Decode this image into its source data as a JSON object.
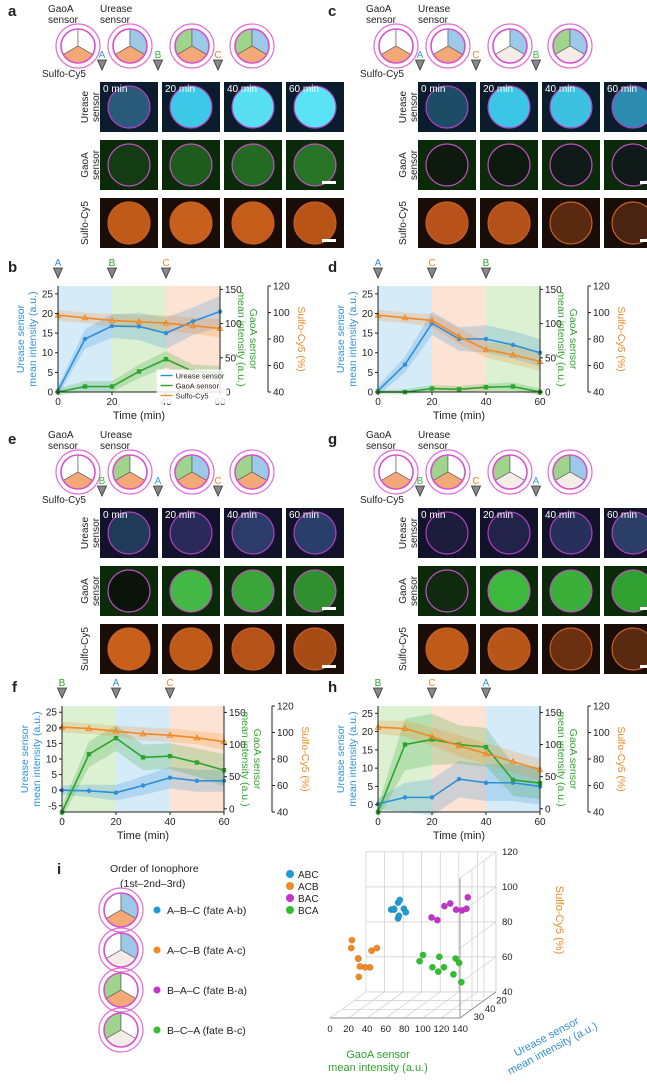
{
  "panels": {
    "a": {
      "letter": "a",
      "sensor_labels": [
        "GaoA\nsensor",
        "Urease\nsensor"
      ],
      "dye_label": "Sulfo-Cy5",
      "markers": [
        {
          "label": "A",
          "color": "#3a9fd8"
        },
        {
          "label": "B",
          "color": "#3db33a"
        },
        {
          "label": "C",
          "color": "#f0892a"
        }
      ],
      "times": [
        "0 min",
        "20 min",
        "40 min",
        "60 min"
      ],
      "rows": [
        "Urease\nsensor",
        "GaoA\nsensor",
        "Sulfo-Cy5"
      ]
    },
    "c": {
      "letter": "c",
      "sensor_labels": [
        "GaoA\nsensor",
        "Urease\nsensor"
      ],
      "dye_label": "Sulfo-Cy5",
      "markers": [
        {
          "label": "A",
          "color": "#3a9fd8"
        },
        {
          "label": "C",
          "color": "#f0892a"
        },
        {
          "label": "B",
          "color": "#3db33a"
        }
      ],
      "times": [
        "0 min",
        "20 min",
        "40 min",
        "60 min"
      ],
      "rows": [
        "Urease\nsensor",
        "GaoA\nsensor",
        "Sulfo-Cy5"
      ]
    },
    "e": {
      "letter": "e",
      "sensor_labels": [
        "GaoA\nsensor",
        "Urease\nsensor"
      ],
      "dye_label": "Sulfo-Cy5",
      "markers": [
        {
          "label": "B",
          "color": "#3db33a"
        },
        {
          "label": "A",
          "color": "#3a9fd8"
        },
        {
          "label": "C",
          "color": "#f0892a"
        }
      ],
      "times": [
        "0 min",
        "20 min",
        "40 min",
        "60 min"
      ],
      "rows": [
        "Urease\nsensor",
        "GaoA\nsensor",
        "Sulfo-Cy5"
      ]
    },
    "g": {
      "letter": "g",
      "sensor_labels": [
        "GaoA\nsensor",
        "Urease\nsensor"
      ],
      "dye_label": "Sulfo-Cy5",
      "markers": [
        {
          "label": "B",
          "color": "#3db33a"
        },
        {
          "label": "C",
          "color": "#f0892a"
        },
        {
          "label": "A",
          "color": "#3a9fd8"
        }
      ],
      "times": [
        "0 min",
        "20 min",
        "40 min",
        "60 min"
      ],
      "rows": [
        "Urease\nsensor",
        "GaoA\nsensor",
        "Sulfo-Cy5"
      ]
    },
    "i": {
      "letter": "i",
      "legend_title": "Order of Ionophore",
      "legend_subtitle": "(1st–2nd–3rd)",
      "items": [
        {
          "label": "A–B–C (fate A-b)",
          "color": "#1f9bd7"
        },
        {
          "label": "A–C–B (fate A-c)",
          "color": "#f08a24"
        },
        {
          "label": "B–A–C (fate B-a)",
          "color": "#c433c9"
        },
        {
          "label": "B–C–A (fate B-c)",
          "color": "#2fbf2f"
        }
      ]
    }
  },
  "colors": {
    "urease": "#2e8fd9",
    "gaoa": "#2ca52c",
    "cy5": "#f08a24",
    "bg_a": "#d6ebf8",
    "bg_b": "#dcf0d2",
    "bg_c": "#fde3d3"
  },
  "chart_data": [
    {
      "id": "b",
      "type": "line",
      "panel_letter": "b",
      "xlabel": "Time (min)",
      "xlim": [
        0,
        60
      ],
      "xticks": [
        0,
        20,
        40,
        60
      ],
      "y_left": {
        "label": "Urease sensor\nmean intensity (a.u.)",
        "lim": [
          0,
          27
        ],
        "ticks": [
          0,
          5,
          10,
          15,
          20,
          25
        ]
      },
      "y_mid": {
        "label": "GaoA sensor\nmean intensity (a.u.)",
        "lim": [
          0,
          155
        ],
        "ticks": [
          0,
          50,
          100,
          150
        ]
      },
      "y_right": {
        "label": "Sulfo-Cy5 (%)",
        "lim": [
          40,
          120
        ],
        "ticks": [
          40,
          60,
          80,
          100,
          120
        ]
      },
      "phases": [
        {
          "label": "A",
          "start": 0,
          "end": 20
        },
        {
          "label": "B",
          "start": 20,
          "end": 40
        },
        {
          "label": "C",
          "start": 40,
          "end": 60
        }
      ],
      "series": [
        {
          "name": "Urease sensor",
          "axis": "left",
          "marker": "circle",
          "x": [
            0,
            10,
            20,
            30,
            40,
            50,
            60
          ],
          "values": [
            0.3,
            13.5,
            16.8,
            16.7,
            15.0,
            18.0,
            20.5
          ],
          "band": [
            1.2,
            2.5,
            3.0,
            3.5,
            4.0,
            3.5,
            4.0
          ]
        },
        {
          "name": "GaoA sensor",
          "axis": "mid",
          "marker": "square",
          "x": [
            0,
            10,
            20,
            30,
            40,
            50,
            60
          ],
          "values": [
            0,
            8,
            8,
            30,
            48,
            30,
            28
          ],
          "band": [
            5,
            8,
            8,
            10,
            12,
            10,
            10
          ]
        },
        {
          "name": "Sulfo-Cy5",
          "axis": "right",
          "marker": "triangle",
          "x": [
            0,
            10,
            20,
            30,
            40,
            50,
            60
          ],
          "values": [
            98,
            96,
            94,
            93,
            92,
            90,
            88
          ],
          "band": [
            4,
            4,
            5,
            5,
            6,
            6,
            7
          ]
        }
      ],
      "legend": [
        "Urease sensor",
        "GaoA sensor",
        "Sulfo-Cy5"
      ]
    },
    {
      "id": "d",
      "type": "line",
      "panel_letter": "d",
      "xlabel": "Time (min)",
      "xlim": [
        0,
        60
      ],
      "xticks": [
        0,
        20,
        40,
        60
      ],
      "y_left": {
        "label": "Urease sensor\nmean intensity (a.u.)",
        "lim": [
          0,
          27
        ],
        "ticks": [
          0,
          5,
          10,
          15,
          20,
          25
        ]
      },
      "y_mid": {
        "label": "GaoA sensor\nmean intensity (a.u.)",
        "lim": [
          0,
          155
        ],
        "ticks": [
          0,
          50,
          100,
          150
        ]
      },
      "y_right": {
        "label": "Sulfo-Cy5 (%)",
        "lim": [
          40,
          120
        ],
        "ticks": [
          40,
          60,
          80,
          100,
          120
        ]
      },
      "phases": [
        {
          "label": "A",
          "start": 0,
          "end": 20
        },
        {
          "label": "C",
          "start": 20,
          "end": 40
        },
        {
          "label": "B",
          "start": 40,
          "end": 60
        }
      ],
      "series": [
        {
          "name": "Urease sensor",
          "axis": "left",
          "marker": "circle",
          "x": [
            0,
            10,
            20,
            30,
            40,
            50,
            60
          ],
          "values": [
            0.3,
            7,
            17.5,
            13.5,
            13.5,
            12,
            10
          ],
          "band": [
            1.2,
            2,
            3,
            3,
            3.5,
            3.5,
            3.5
          ]
        },
        {
          "name": "GaoA sensor",
          "axis": "mid",
          "marker": "square",
          "x": [
            0,
            10,
            20,
            30,
            40,
            50,
            60
          ],
          "values": [
            0,
            0,
            5,
            4,
            7,
            8,
            0
          ],
          "band": [
            3,
            4,
            5,
            5,
            5,
            6,
            5
          ]
        },
        {
          "name": "Sulfo-Cy5",
          "axis": "right",
          "marker": "triangle",
          "x": [
            0,
            10,
            20,
            30,
            40,
            50,
            60
          ],
          "values": [
            98,
            96,
            94,
            82,
            72,
            68,
            63
          ],
          "band": [
            4,
            4,
            5,
            6,
            6,
            7,
            7
          ]
        }
      ]
    },
    {
      "id": "f",
      "type": "line",
      "panel_letter": "f",
      "xlabel": "Time (min)",
      "xlim": [
        0,
        60
      ],
      "xticks": [
        0,
        20,
        40,
        60
      ],
      "y_left": {
        "label": "Urease sensor\nmean intensity (a.u.)",
        "lim": [
          -7,
          27
        ],
        "ticks": [
          -5,
          0,
          5,
          10,
          15,
          20,
          25
        ]
      },
      "y_mid": {
        "label": "GaoA sensor\nmean intensity (a.u.)",
        "lim": [
          -5,
          160
        ],
        "ticks": [
          0,
          50,
          100,
          150
        ]
      },
      "y_right": {
        "label": "Sulfo-Cy5 (%)",
        "lim": [
          40,
          120
        ],
        "ticks": [
          40,
          60,
          80,
          100,
          120
        ]
      },
      "phases": [
        {
          "label": "B",
          "start": 0,
          "end": 20
        },
        {
          "label": "A",
          "start": 20,
          "end": 40
        },
        {
          "label": "C",
          "start": 40,
          "end": 60
        }
      ],
      "series": [
        {
          "name": "Urease sensor",
          "axis": "left",
          "marker": "circle",
          "x": [
            0,
            10,
            20,
            30,
            40,
            50,
            60
          ],
          "values": [
            0,
            -0.2,
            -0.8,
            1.5,
            4,
            3,
            3
          ],
          "band": [
            1.5,
            2,
            2.5,
            3,
            3.5,
            3.5,
            3.5
          ]
        },
        {
          "name": "GaoA sensor",
          "axis": "mid",
          "marker": "square",
          "x": [
            0,
            10,
            20,
            30,
            40,
            50,
            60
          ],
          "values": [
            -5,
            85,
            110,
            80,
            82,
            72,
            60
          ],
          "band": [
            10,
            20,
            20,
            20,
            20,
            22,
            25
          ]
        },
        {
          "name": "Sulfo-Cy5",
          "axis": "right",
          "marker": "triangle",
          "x": [
            0,
            10,
            20,
            30,
            40,
            50,
            60
          ],
          "values": [
            104,
            103,
            101,
            99,
            98,
            96,
            93
          ],
          "band": [
            4,
            4,
            4,
            5,
            5,
            5,
            6
          ]
        }
      ]
    },
    {
      "id": "h",
      "type": "line",
      "panel_letter": "h",
      "xlabel": "Time (min)",
      "xlim": [
        0,
        60
      ],
      "xticks": [
        0,
        20,
        40,
        60
      ],
      "y_left": {
        "label": "Urease sensor\nmean intensity (a.u.)",
        "lim": [
          -2,
          27
        ],
        "ticks": [
          0,
          5,
          10,
          15,
          20,
          25
        ]
      },
      "y_mid": {
        "label": "GaoA sensor\nmean intensity (a.u.)",
        "lim": [
          -5,
          160
        ],
        "ticks": [
          0,
          50,
          100,
          150
        ]
      },
      "y_right": {
        "label": "Sulfo-Cy5 (%)",
        "lim": [
          40,
          120
        ],
        "ticks": [
          40,
          60,
          80,
          100,
          120
        ]
      },
      "phases": [
        {
          "label": "B",
          "start": 0,
          "end": 20
        },
        {
          "label": "C",
          "start": 20,
          "end": 40
        },
        {
          "label": "A",
          "start": 40,
          "end": 60
        }
      ],
      "series": [
        {
          "name": "Urease sensor",
          "axis": "left",
          "marker": "circle",
          "x": [
            0,
            10,
            20,
            30,
            40,
            50,
            60
          ],
          "values": [
            0.2,
            2,
            2,
            7,
            6,
            6,
            5
          ],
          "band": [
            1.5,
            4,
            5,
            5,
            5,
            5,
            5
          ]
        },
        {
          "name": "GaoA sensor",
          "axis": "mid",
          "marker": "square",
          "x": [
            0,
            10,
            20,
            30,
            40,
            50,
            60
          ],
          "values": [
            -5,
            100,
            108,
            100,
            96,
            45,
            40
          ],
          "band": [
            10,
            40,
            40,
            30,
            30,
            25,
            25
          ]
        },
        {
          "name": "Sulfo-Cy5",
          "axis": "right",
          "marker": "triangle",
          "x": [
            0,
            10,
            20,
            30,
            40,
            50,
            60
          ],
          "values": [
            104,
            103,
            97,
            90,
            84,
            78,
            72
          ],
          "band": [
            5,
            6,
            7,
            8,
            8,
            8,
            8
          ]
        }
      ]
    },
    {
      "id": "i",
      "type": "scatter",
      "panel_letter": "i",
      "xlabel": "GaoA sensor\nmean intensity (a.u.)",
      "ylabel": "Urease sensor\nmean intensity (a.u.)",
      "zlabel": "Sulfo-Cy5 (%)",
      "xticks": [
        0,
        20,
        40,
        60,
        80,
        100,
        120,
        140
      ],
      "yticks": [
        30,
        40,
        20
      ],
      "zticks": [
        40,
        60,
        80,
        100,
        120
      ],
      "legend": [
        "ABC",
        "ACB",
        "BAC",
        "BCA"
      ],
      "series": [
        {
          "name": "ABC",
          "x": [
            40,
            45,
            50,
            38,
            48,
            55,
            42,
            52,
            47
          ],
          "y": [
            20,
            22,
            18,
            24,
            21,
            19,
            25,
            23,
            17
          ],
          "z": [
            92,
            95,
            88,
            90,
            97,
            93,
            86,
            89,
            94
          ]
        },
        {
          "name": "ACB",
          "x": [
            10,
            15,
            20,
            25,
            30,
            12,
            18,
            28,
            22,
            35
          ],
          "y": [
            10,
            12,
            8,
            14,
            6,
            9,
            11,
            13,
            7,
            12
          ],
          "z": [
            75,
            68,
            70,
            62,
            66,
            80,
            64,
            72,
            60,
            74
          ]
        },
        {
          "name": "BAC",
          "x": [
            90,
            100,
            110,
            120,
            95,
            105,
            115,
            125
          ],
          "y": [
            15,
            18,
            20,
            22,
            16,
            19,
            21,
            17
          ],
          "z": [
            90,
            95,
            92,
            98,
            88,
            96,
            91,
            94
          ]
        },
        {
          "name": "BCA",
          "x": [
            90,
            100,
            110,
            120,
            130,
            95,
            105,
            115,
            125,
            135
          ],
          "y": [
            5,
            8,
            6,
            10,
            7,
            4,
            9,
            6,
            8,
            5
          ],
          "z": [
            70,
            65,
            72,
            60,
            68,
            74,
            62,
            66,
            70,
            58
          ]
        }
      ]
    }
  ]
}
